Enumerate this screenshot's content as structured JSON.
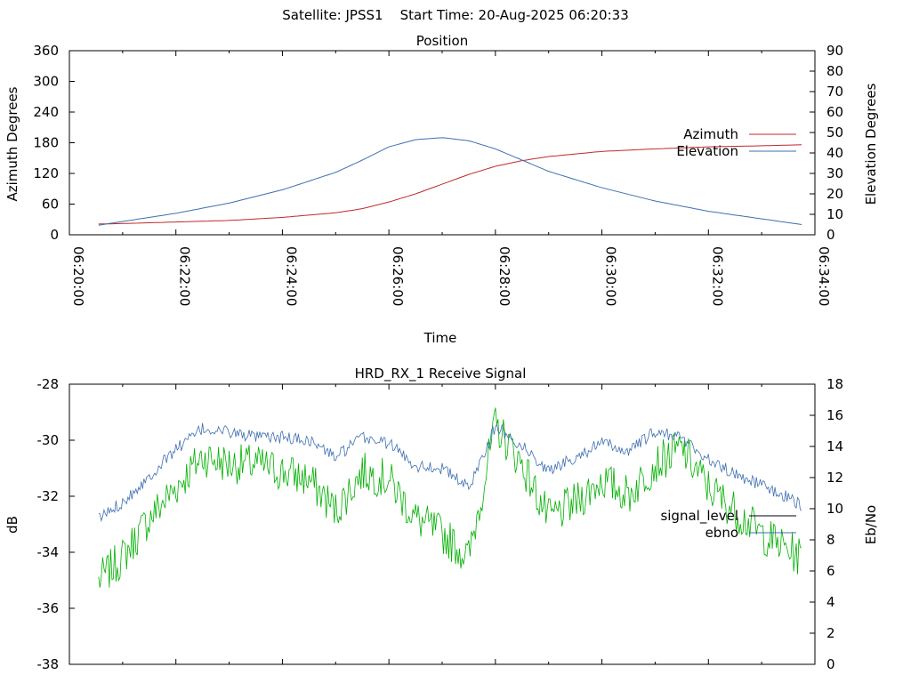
{
  "page_title": "Satellite: JPSS1    Start Time: 20-Aug-2025 06:20:33",
  "colors": {
    "azimuth": "#c0282d",
    "elevation": "#3e6fb0",
    "signal_level": "#000000",
    "ebno_legend": "#3e6fb0",
    "ebno_green": "#00b000",
    "signal_blue": "#3e6fb0"
  },
  "chart_data": [
    {
      "type": "line",
      "title": "Position",
      "xlabel": "Time",
      "ylabel": "Azimuth Degrees",
      "y2label": "Elevation Degrees",
      "xlim": [
        "06:20:00",
        "06:34:00"
      ],
      "ylim": [
        0,
        360
      ],
      "y2lim": [
        0,
        90
      ],
      "x_ticks": [
        "06:20:00",
        "06:22:00",
        "06:24:00",
        "06:26:00",
        "06:28:00",
        "06:30:00",
        "06:32:00",
        "06:34:00"
      ],
      "y_ticks": [
        "0",
        "60",
        "120",
        "180",
        "240",
        "300",
        "360"
      ],
      "y2_ticks": [
        "0",
        "10",
        "20",
        "30",
        "40",
        "50",
        "60",
        "70",
        "80",
        "90"
      ],
      "legend_position": "right",
      "grid": false,
      "series": [
        {
          "name": "Azimuth",
          "axis": "y",
          "x": [
            "06:20:33",
            "06:21:00",
            "06:22:00",
            "06:23:00",
            "06:24:00",
            "06:25:00",
            "06:25:30",
            "06:26:00",
            "06:26:30",
            "06:27:00",
            "06:27:30",
            "06:28:00",
            "06:28:30",
            "06:29:00",
            "06:30:00",
            "06:31:00",
            "06:32:00",
            "06:33:00",
            "06:33:45"
          ],
          "values": [
            21,
            22,
            25,
            28,
            34,
            43,
            51,
            64,
            80,
            99,
            118,
            134,
            145,
            153,
            163,
            168,
            172,
            174,
            176
          ]
        },
        {
          "name": "Elevation",
          "axis": "y2",
          "x": [
            "06:20:33",
            "06:21:00",
            "06:22:00",
            "06:23:00",
            "06:24:00",
            "06:25:00",
            "06:25:30",
            "06:26:00",
            "06:26:30",
            "06:27:00",
            "06:27:30",
            "06:28:00",
            "06:28:30",
            "06:29:00",
            "06:30:00",
            "06:31:00",
            "06:32:00",
            "06:33:00",
            "06:33:45"
          ],
          "values": [
            4.7,
            6.5,
            10.5,
            15.5,
            22.0,
            30.5,
            36.5,
            43.0,
            46.5,
            47.5,
            46.0,
            42.0,
            36.5,
            31.0,
            23.0,
            16.5,
            11.5,
            7.8,
            5.0
          ]
        }
      ]
    },
    {
      "type": "line",
      "title": "HRD_RX_1 Receive Signal",
      "xlabel": "",
      "ylabel": "dB",
      "y2label": "Eb/No",
      "xlim": [
        "06:20:00",
        "06:34:00"
      ],
      "ylim": [
        -38,
        -28
      ],
      "y2lim": [
        0,
        18
      ],
      "y_ticks": [
        "-38",
        "-36",
        "-34",
        "-32",
        "-30",
        "-28"
      ],
      "y2_ticks": [
        "0",
        "2",
        "4",
        "6",
        "8",
        "10",
        "12",
        "14",
        "16",
        "18"
      ],
      "legend_position": "right",
      "grid": false,
      "series": [
        {
          "name": "signal_level",
          "axis": "y",
          "x": [
            "06:20:33",
            "06:21:00",
            "06:21:30",
            "06:22:00",
            "06:22:30",
            "06:23:00",
            "06:23:30",
            "06:24:00",
            "06:24:30",
            "06:25:00",
            "06:25:30",
            "06:26:00",
            "06:26:30",
            "06:27:00",
            "06:27:30",
            "06:28:00",
            "06:28:30",
            "06:29:00",
            "06:29:30",
            "06:30:00",
            "06:30:30",
            "06:31:00",
            "06:31:30",
            "06:32:00",
            "06:32:30",
            "06:33:00",
            "06:33:45"
          ],
          "values": [
            -32.8,
            -32.2,
            -31.3,
            -30.3,
            -29.6,
            -29.7,
            -29.9,
            -29.9,
            -30.0,
            -30.6,
            -29.9,
            -30.1,
            -30.9,
            -31.0,
            -31.7,
            -29.5,
            -30.2,
            -31.1,
            -30.6,
            -30.1,
            -30.4,
            -29.7,
            -29.9,
            -30.7,
            -31.2,
            -31.6,
            -32.3
          ]
        },
        {
          "name": "ebno",
          "axis": "y2",
          "x": [
            "06:20:33",
            "06:21:00",
            "06:21:30",
            "06:22:00",
            "06:22:30",
            "06:23:00",
            "06:23:30",
            "06:24:00",
            "06:24:30",
            "06:25:00",
            "06:25:30",
            "06:26:00",
            "06:26:30",
            "06:27:00",
            "06:27:30",
            "06:28:00",
            "06:28:30",
            "06:29:00",
            "06:29:30",
            "06:30:00",
            "06:30:30",
            "06:31:00",
            "06:31:30",
            "06:32:00",
            "06:32:30",
            "06:33:00",
            "06:33:45"
          ],
          "values": [
            5.5,
            7.0,
            9.5,
            11.5,
            13.5,
            13.0,
            13.0,
            12.5,
            12.0,
            10.0,
            12.5,
            12.0,
            9.5,
            8.5,
            7.0,
            15.5,
            13.0,
            9.5,
            10.5,
            12.0,
            11.0,
            13.0,
            14.0,
            11.5,
            10.0,
            8.5,
            7.0
          ]
        }
      ]
    }
  ]
}
